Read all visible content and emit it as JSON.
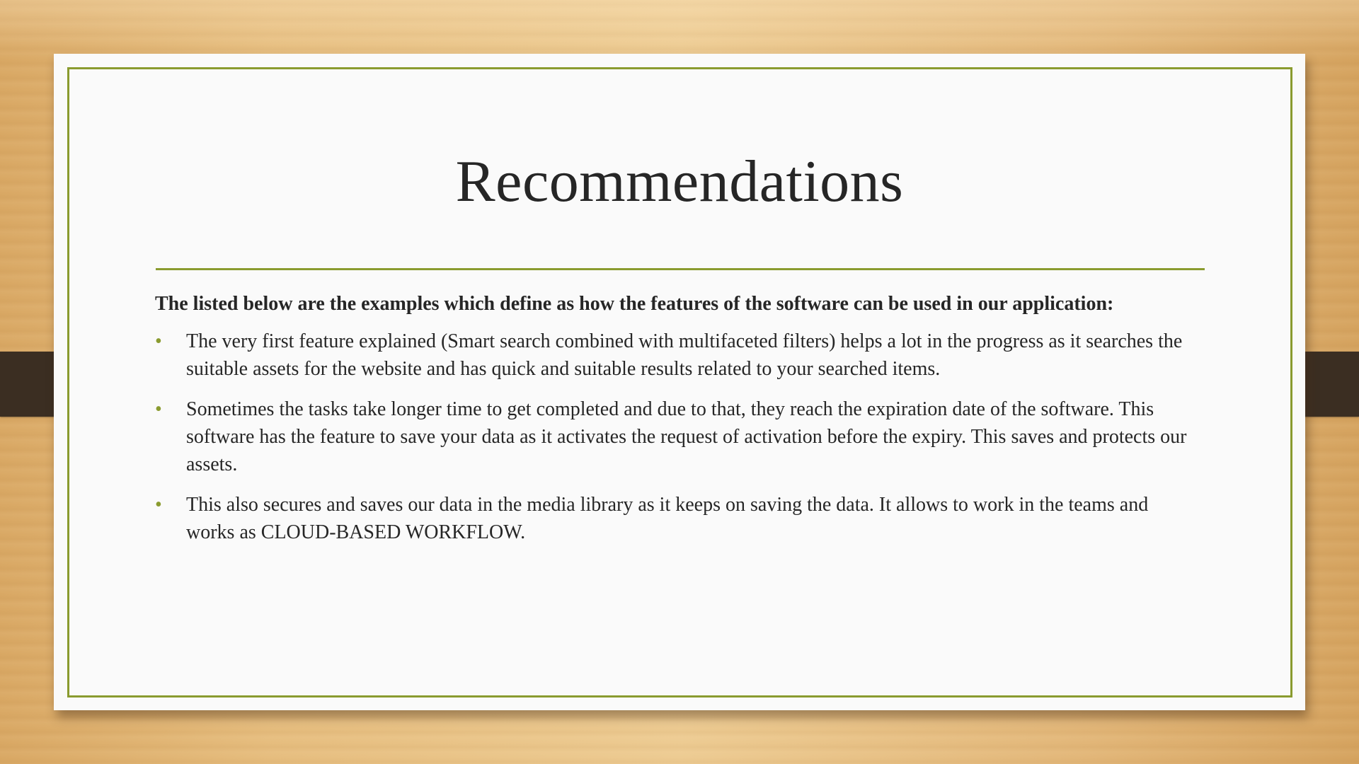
{
  "slide": {
    "title": "Recommendations",
    "intro": "The listed below are the examples which define as how the features of the software can be used in our application:",
    "bullets": [
      "The very first feature explained (Smart search combined with multifaceted filters) helps a lot in the progress as it searches the suitable assets for the website and has quick and suitable results related to your searched items.",
      "Sometimes the tasks take longer time to get completed and due to that, they reach the expiration date of the software. This software has the feature to save your data as it activates the request of activation before the expiry. This saves and protects our assets.",
      "This also secures and saves our data in the media library as it keeps on saving the data. It allows to work in the teams and works as CLOUD-BASED WORKFLOW."
    ],
    "bullet_glyph": "•"
  },
  "colors": {
    "accent": "#8a9b2f",
    "text": "#262626",
    "paper": "#fafafa",
    "clip": "#3b2e22",
    "wood": "#e6bd7e"
  }
}
